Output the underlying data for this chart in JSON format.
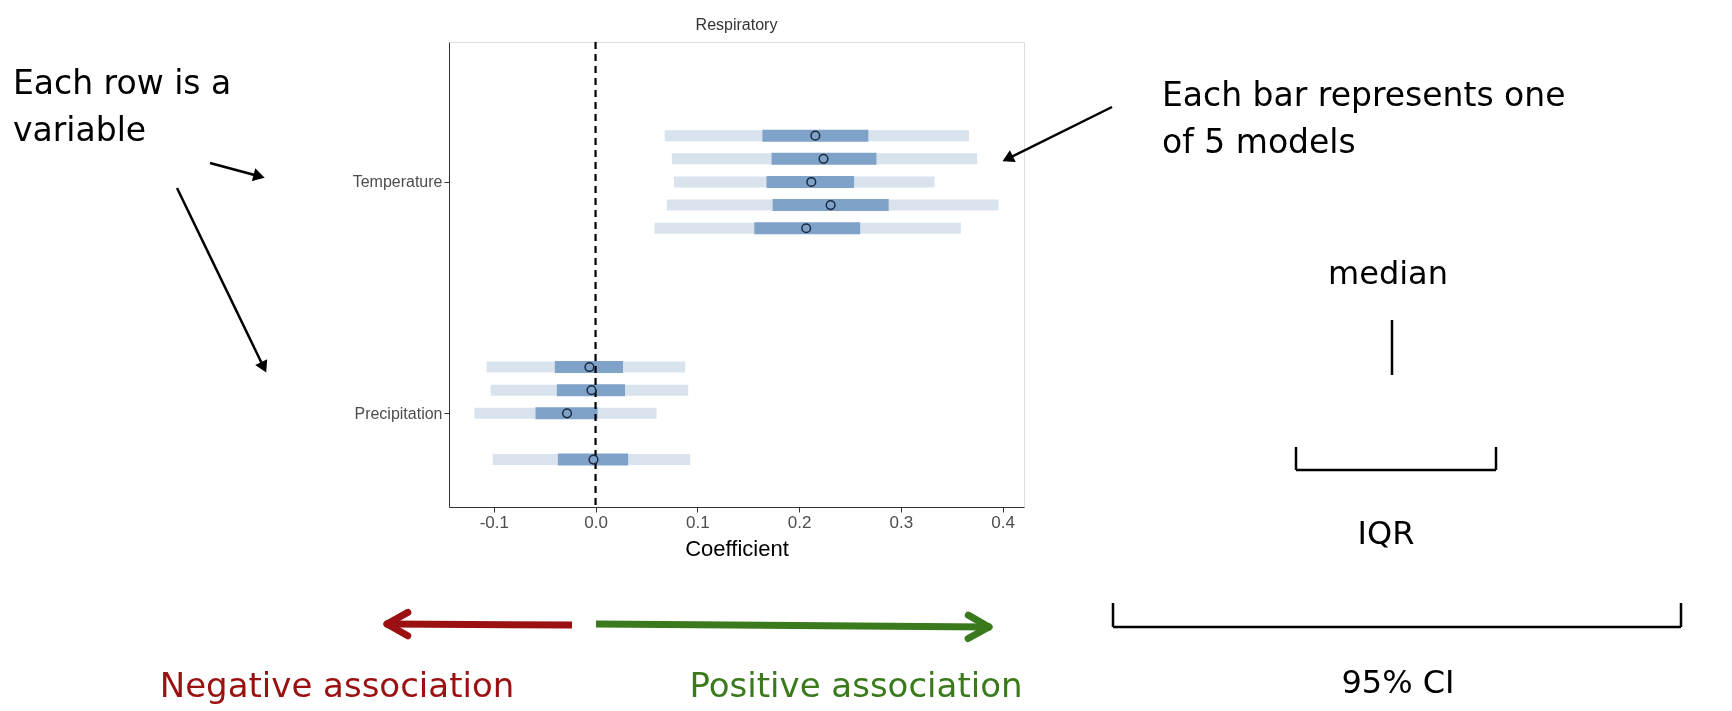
{
  "chart_data": {
    "type": "box",
    "orientation": "horizontal",
    "title": "Respiratory",
    "xlabel": "Coefficient",
    "categories": [
      "Temperature",
      "Precipitation"
    ],
    "xlim": [
      -0.144,
      0.421
    ],
    "xticks": [
      -0.1,
      {
        "value": 0,
        "label": "0.0"
      },
      0.1,
      0.2,
      0.3,
      0.4
    ],
    "grid": false,
    "marker": "circle",
    "ref_lines": [
      {
        "axis": "x",
        "value": 0,
        "line_style": "dashed",
        "color": "#000000"
      }
    ],
    "series": [
      {
        "color": "#7fa2c8",
        "boxes": [
          {
            "low": 0.068,
            "q1": 0.164,
            "median": 0.216,
            "q3": 0.268,
            "high": 0.367
          },
          {
            "low": -0.107,
            "q1": -0.04,
            "median": -0.006,
            "q3": 0.027,
            "high": 0.088
          }
        ]
      },
      {
        "color": "#7fa2c8",
        "boxes": [
          {
            "low": 0.075,
            "q1": 0.173,
            "median": 0.224,
            "q3": 0.276,
            "high": 0.375
          },
          {
            "low": -0.103,
            "q1": -0.038,
            "median": -0.004,
            "q3": 0.029,
            "high": 0.091
          }
        ]
      },
      {
        "color": "#7fa2c8",
        "boxes": [
          {
            "low": 0.077,
            "q1": 0.168,
            "median": 0.212,
            "q3": 0.254,
            "high": 0.333
          },
          {
            "low": -0.119,
            "q1": -0.059,
            "median": -0.028,
            "q3": 0.002,
            "high": 0.06
          }
        ]
      },
      {
        "color": "#7fa2c8",
        "boxes": [
          {
            "low": 0.07,
            "q1": 0.174,
            "median": 0.231,
            "q3": 0.288,
            "high": 0.396
          },
          null
        ]
      },
      {
        "color": "#7fa2c8",
        "boxes": [
          {
            "low": 0.058,
            "q1": 0.156,
            "median": 0.207,
            "q3": 0.26,
            "high": 0.359
          },
          {
            "low": -0.101,
            "q1": -0.037,
            "median": -0.002,
            "q3": 0.032,
            "high": 0.093
          }
        ]
      }
    ],
    "annotations": [
      "Each row is a\nvariable",
      "Each bar represents one\nof 5 models",
      "median",
      "IQR",
      "95% CI",
      "Negative association",
      "Positive association"
    ]
  }
}
